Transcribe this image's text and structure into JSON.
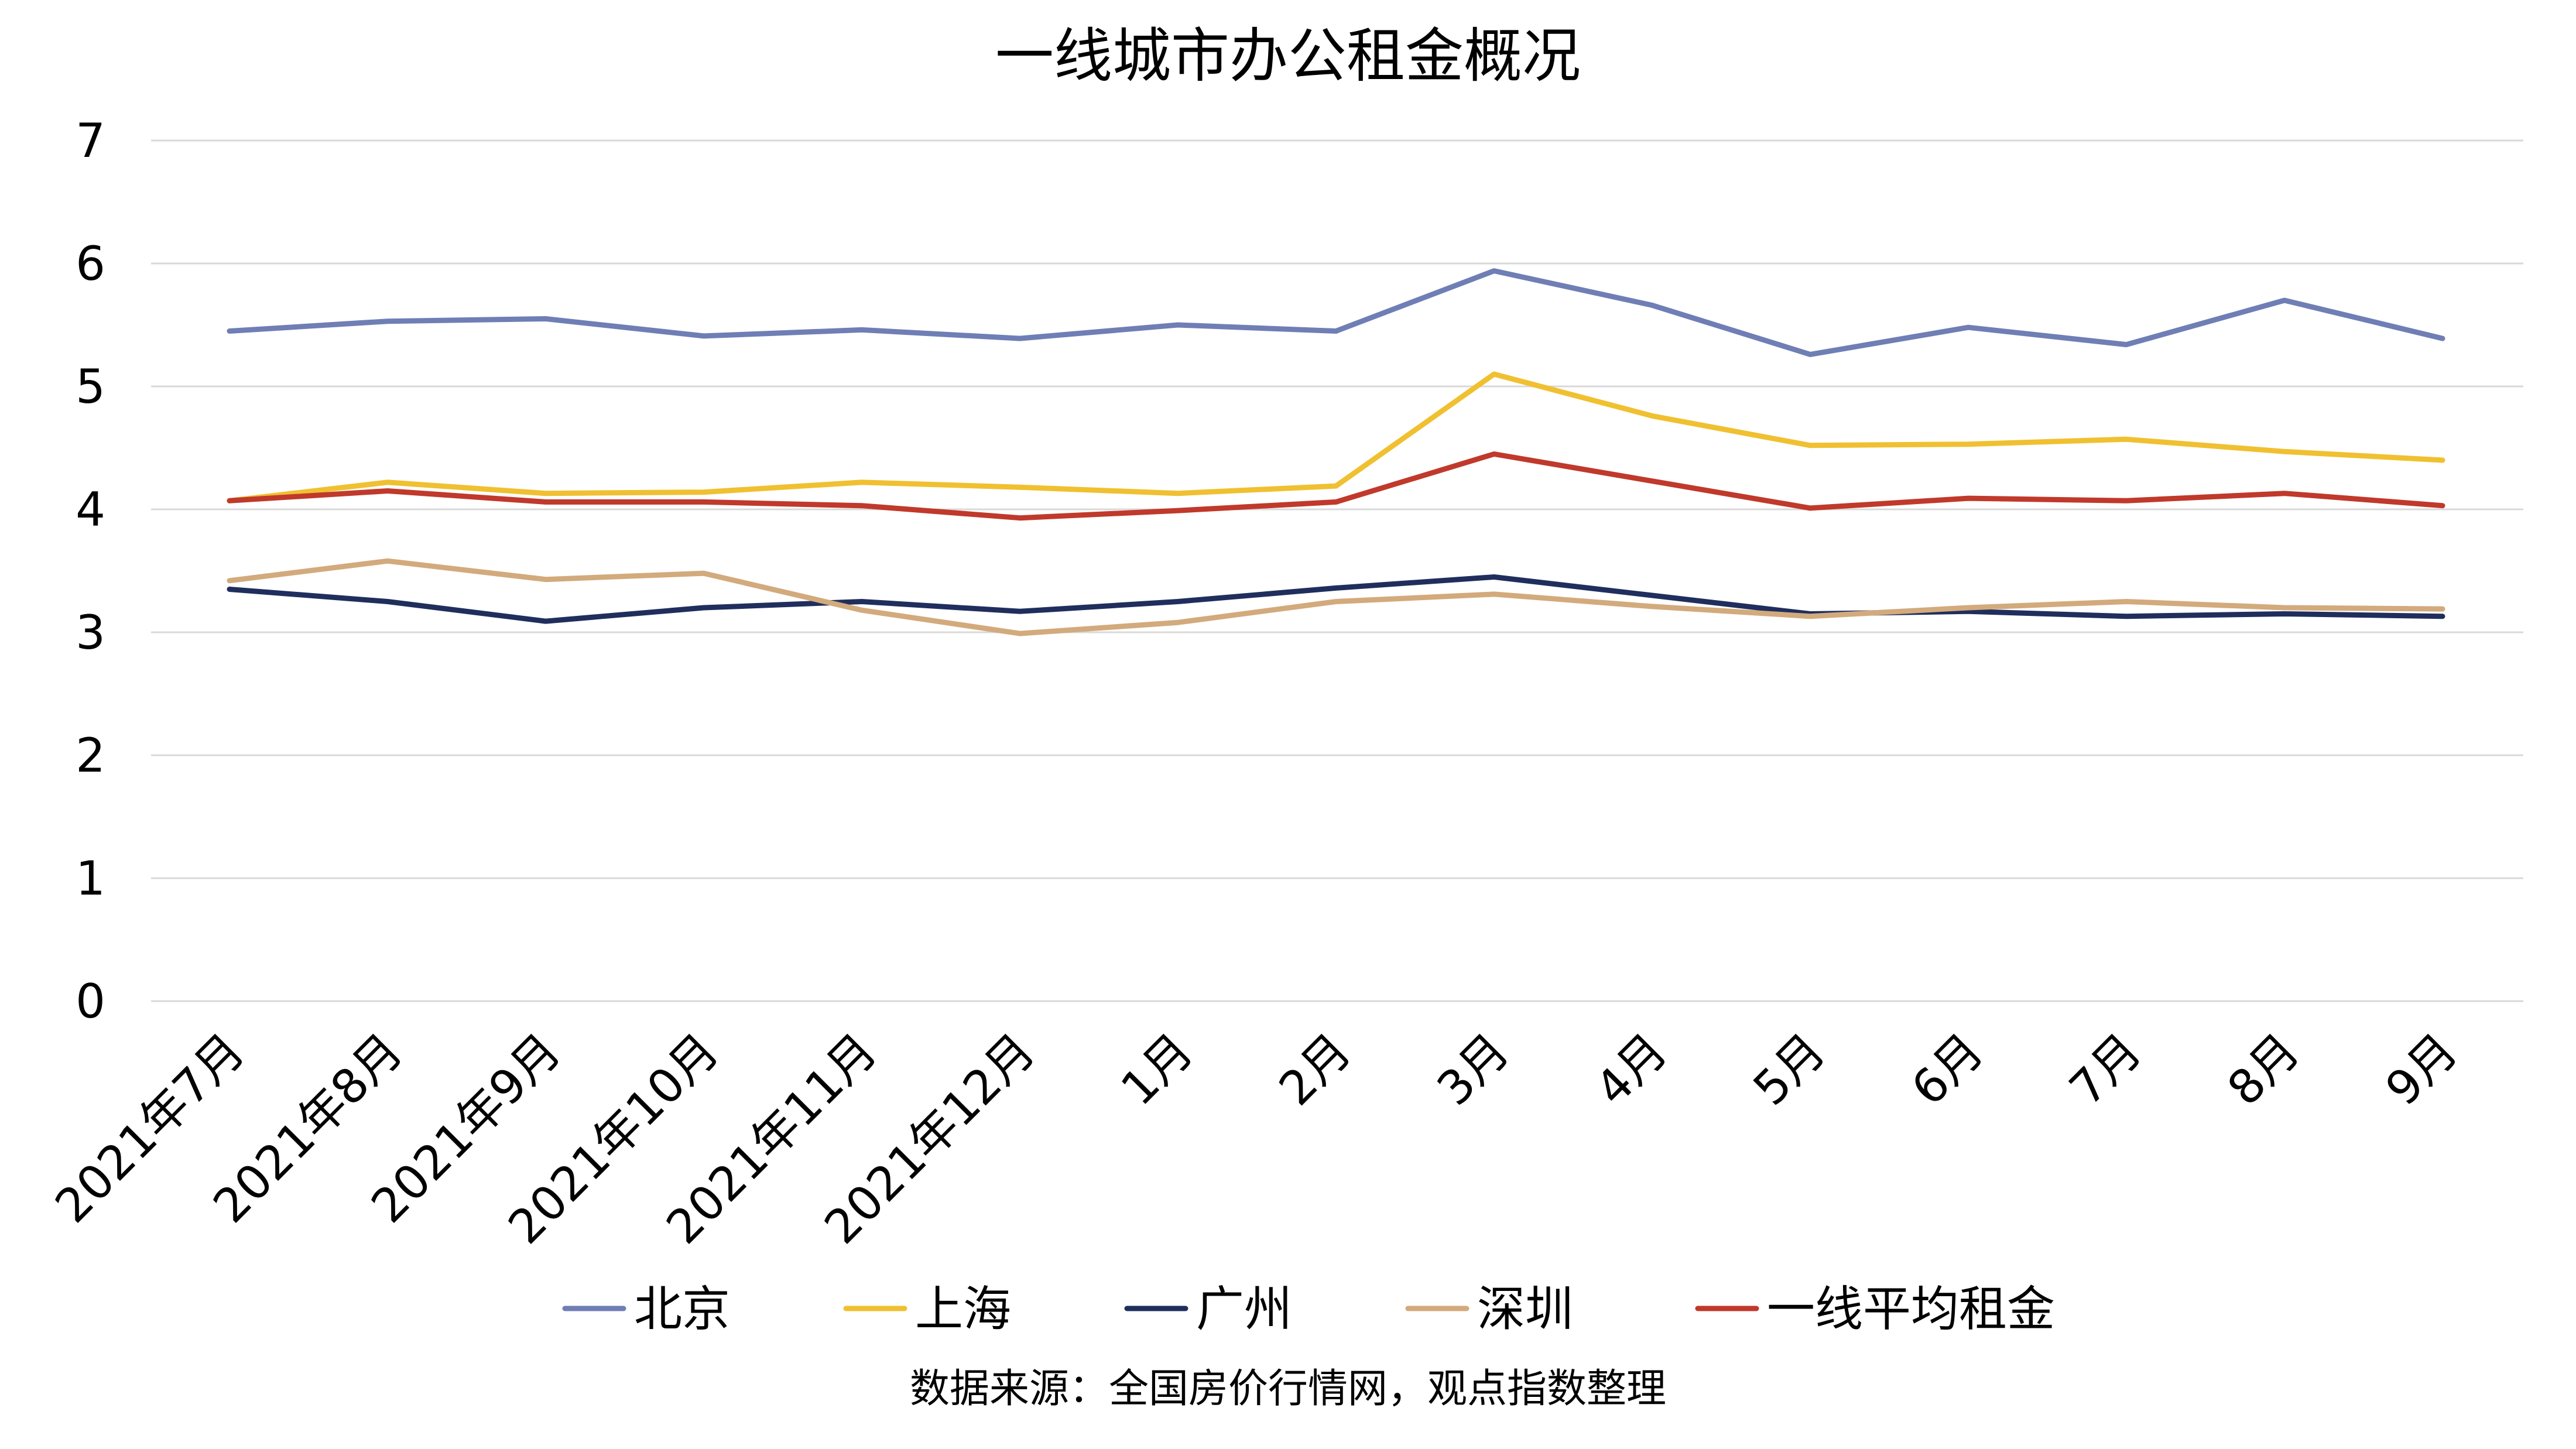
{
  "chart_data": {
    "type": "line",
    "title": "一线城市办公租金概况",
    "categories": [
      "2021年7月",
      "2021年8月",
      "2021年9月",
      "2021年10月",
      "2021年11月",
      "2021年12月",
      "1月",
      "2月",
      "3月",
      "4月",
      "5月",
      "6月",
      "7月",
      "8月",
      "9月"
    ],
    "ylim": [
      0,
      7
    ],
    "yticks": [
      0,
      1,
      2,
      3,
      4,
      5,
      6,
      7
    ],
    "grid": true,
    "legend_position": "bottom",
    "series": [
      {
        "name": "北京",
        "color": "#6f7eb5",
        "values": [
          5.45,
          5.53,
          5.55,
          5.41,
          5.46,
          5.39,
          5.5,
          5.45,
          5.94,
          5.66,
          5.26,
          5.48,
          5.34,
          5.7,
          5.39
        ]
      },
      {
        "name": "上海",
        "color": "#f0c030",
        "values": [
          4.07,
          4.22,
          4.13,
          4.14,
          4.22,
          4.18,
          4.13,
          4.19,
          5.1,
          4.76,
          4.52,
          4.53,
          4.57,
          4.47,
          4.4
        ]
      },
      {
        "name": "广州",
        "color": "#1f2e5c",
        "values": [
          3.35,
          3.25,
          3.09,
          3.2,
          3.25,
          3.17,
          3.25,
          3.36,
          3.45,
          3.3,
          3.15,
          3.17,
          3.13,
          3.15,
          3.13
        ]
      },
      {
        "name": "深圳",
        "color": "#d2aa7c",
        "values": [
          3.42,
          3.58,
          3.43,
          3.48,
          3.18,
          2.99,
          3.08,
          3.25,
          3.31,
          3.21,
          3.13,
          3.2,
          3.25,
          3.2,
          3.19
        ]
      },
      {
        "name": "一线平均租金",
        "color": "#c0392b",
        "values": [
          4.07,
          4.15,
          4.06,
          4.06,
          4.03,
          3.93,
          3.99,
          4.06,
          4.45,
          4.23,
          4.01,
          4.09,
          4.07,
          4.13,
          4.03
        ]
      }
    ],
    "source": "数据来源：全国房价行情网，观点指数整理"
  }
}
